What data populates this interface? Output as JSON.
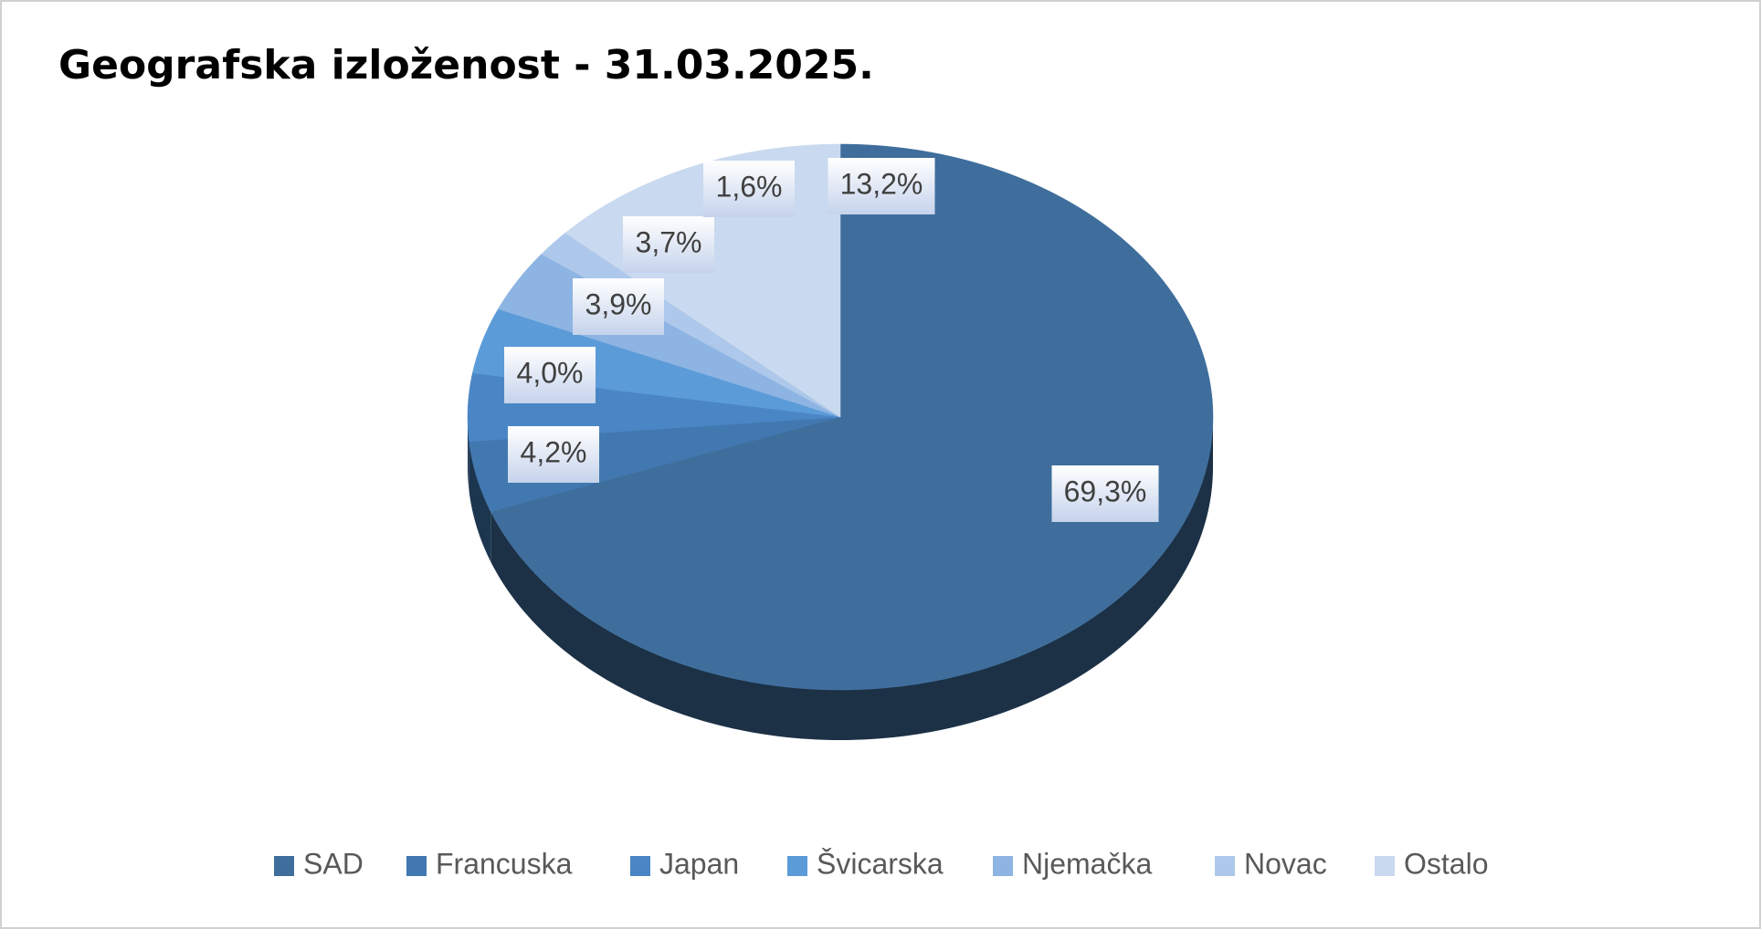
{
  "chart_data": {
    "type": "pie",
    "title": "Geografska izloženost - 31.03.2025.",
    "categories": [
      "SAD",
      "Francuska",
      "Japan",
      "Švicarska",
      "Njemačka",
      "Novac",
      "Ostalo"
    ],
    "values": [
      69.3,
      4.2,
      4.0,
      3.9,
      3.7,
      1.6,
      13.2
    ],
    "value_labels": [
      "69,3%",
      "4,2%",
      "4,0%",
      "3,9%",
      "3,7%",
      "1,6%",
      "13,2%"
    ],
    "colors": [
      "#3f6e9c",
      "#4178b0",
      "#4a86c5",
      "#5b9bd8",
      "#8db4e2",
      "#adc8ea",
      "#c9d9ef"
    ],
    "legend": "bottom"
  }
}
